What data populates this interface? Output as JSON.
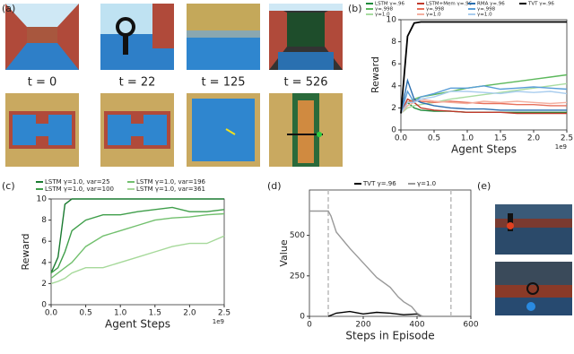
{
  "panel_labels": [
    "(a)",
    "(b)",
    "(c)",
    "(d)",
    "(e)"
  ],
  "frames": [
    "t = 0",
    "t = 22",
    "t = 125",
    "t = 526"
  ],
  "chart_data": [
    {
      "type": "line",
      "xlabel": "Agent Steps",
      "ylabel": "Reward",
      "offset_label": "1e9",
      "x": [
        0,
        0.1,
        0.2,
        0.3,
        0.5,
        0.75,
        1.0,
        1.25,
        1.5,
        1.75,
        2.0,
        2.25,
        2.5
      ],
      "xlim": [
        0,
        2.5
      ],
      "ylim": [
        0,
        10
      ],
      "xticks": [
        {
          "value": 0,
          "label": "0.0"
        },
        0.5,
        {
          "value": 1,
          "label": "1.0"
        },
        1.5,
        {
          "value": 2,
          "label": "2.0"
        },
        2.5
      ],
      "yticks": [
        0,
        2,
        4,
        6,
        8,
        10
      ],
      "series": [
        {
          "name": "LSTM γ=.96",
          "color": "#1e8a3a",
          "values": [
            1.5,
            2.5,
            2.0,
            1.8,
            1.7,
            1.7,
            1.6,
            1.6,
            1.6,
            1.6,
            1.6,
            1.6,
            1.6
          ]
        },
        {
          "name": "γ=.998",
          "color": "#5cb85c",
          "values": [
            1.5,
            2.5,
            2.8,
            3.0,
            3.2,
            3.5,
            3.8,
            4.0,
            4.2,
            4.4,
            4.6,
            4.8,
            5.0
          ]
        },
        {
          "name": "γ=1.0",
          "color": "#a8dca0",
          "values": [
            1.5,
            2.0,
            2.2,
            2.3,
            2.5,
            2.8,
            3.0,
            3.2,
            3.4,
            3.6,
            3.8,
            4.0,
            4.2
          ]
        },
        {
          "name": "LSTM+Mem γ=.96",
          "color": "#c0392b",
          "values": [
            1.5,
            2.8,
            2.5,
            2.0,
            1.8,
            1.7,
            1.6,
            1.6,
            1.6,
            1.5,
            1.5,
            1.5,
            1.5
          ]
        },
        {
          "name": "γ=.998",
          "color": "#e8705a",
          "values": [
            1.5,
            2.5,
            2.7,
            2.6,
            2.5,
            2.6,
            2.5,
            2.4,
            2.4,
            2.3,
            2.3,
            2.2,
            2.2
          ]
        },
        {
          "name": "γ=1.0",
          "color": "#f4b0a0",
          "values": [
            1.5,
            2.2,
            2.5,
            2.8,
            2.6,
            2.5,
            2.4,
            2.6,
            2.5,
            2.6,
            2.5,
            2.4,
            2.5
          ]
        },
        {
          "name": "RMA γ=.96",
          "color": "#2a6fb0",
          "values": [
            1.5,
            4.5,
            2.8,
            2.5,
            2.2,
            2.0,
            1.9,
            1.9,
            1.8,
            1.8,
            1.8,
            1.8,
            1.8
          ]
        },
        {
          "name": "γ=.998",
          "color": "#5a9ed8",
          "values": [
            1.5,
            3.5,
            2.5,
            3.0,
            3.3,
            3.8,
            3.8,
            4.0,
            3.7,
            3.8,
            3.9,
            3.8,
            3.7
          ]
        },
        {
          "name": "γ=1.0",
          "color": "#a9cdee",
          "values": [
            1.5,
            2.5,
            2.5,
            2.8,
            3.0,
            3.5,
            3.5,
            3.4,
            3.3,
            3.5,
            3.4,
            3.5,
            3.3
          ]
        },
        {
          "name": "TVT γ=.96",
          "color": "#000000",
          "values": [
            1.5,
            8.5,
            9.7,
            9.8,
            9.8,
            9.8,
            9.8,
            9.8,
            9.8,
            9.8,
            9.8,
            9.8,
            9.8
          ]
        }
      ]
    },
    {
      "type": "line",
      "xlabel": "Agent Steps",
      "ylabel": "Reward",
      "offset_label": "1e9",
      "x": [
        0,
        0.1,
        0.2,
        0.3,
        0.5,
        0.75,
        1.0,
        1.25,
        1.5,
        1.75,
        2.0,
        2.25,
        2.5
      ],
      "xlim": [
        0,
        2.5
      ],
      "ylim": [
        0,
        10
      ],
      "xticks": [
        {
          "value": 0,
          "label": "0.0"
        },
        0.5,
        {
          "value": 1,
          "label": "1.0"
        },
        1.5,
        {
          "value": 2,
          "label": "2.0"
        },
        2.5
      ],
      "yticks": [
        0,
        2,
        4,
        6,
        8,
        10
      ],
      "series": [
        {
          "name": "LSTM γ=1.0, var=25",
          "color": "#1a7a30",
          "values": [
            3.0,
            4.5,
            9.5,
            10,
            10,
            10,
            10,
            10,
            10,
            10,
            10,
            10,
            10
          ]
        },
        {
          "name": "LSTM γ=1.0, var=100",
          "color": "#3f9e4a",
          "values": [
            3.0,
            3.5,
            5.0,
            7.0,
            8.0,
            8.5,
            8.5,
            8.8,
            9.0,
            9.2,
            8.8,
            8.8,
            9.0
          ]
        },
        {
          "name": "LSTM γ=1.0, var=196",
          "color": "#72c06e",
          "values": [
            2.5,
            3.0,
            3.5,
            4.0,
            5.5,
            6.5,
            7.0,
            7.5,
            8.0,
            8.2,
            8.3,
            8.5,
            8.6
          ]
        },
        {
          "name": "LSTM γ=1.0, var=361",
          "color": "#a6d99a",
          "values": [
            2.0,
            2.2,
            2.5,
            3.0,
            3.5,
            3.5,
            4.0,
            4.5,
            5.0,
            5.5,
            5.8,
            5.8,
            6.5
          ]
        }
      ]
    },
    {
      "type": "line",
      "xlabel": "Steps in Episode",
      "ylabel": "Value",
      "xlim": [
        0,
        600
      ],
      "ylim": [
        0,
        780
      ],
      "xticks": [
        0,
        200,
        400,
        600
      ],
      "yticks": [
        0,
        250,
        500
      ],
      "vlines": [
        70,
        526
      ],
      "series": [
        {
          "name": "TVT γ=.96",
          "color": "#000000",
          "x": [
            70,
            100,
            150,
            200,
            250,
            300,
            350,
            400,
            420
          ],
          "values": [
            0,
            20,
            30,
            15,
            25,
            20,
            10,
            15,
            0
          ]
        },
        {
          "name": "γ=1.0",
          "color": "#999999",
          "x": [
            0,
            70,
            80,
            100,
            150,
            200,
            250,
            300,
            330,
            350,
            380,
            400,
            420
          ],
          "values": [
            650,
            650,
            620,
            520,
            420,
            330,
            240,
            180,
            120,
            90,
            60,
            20,
            0
          ]
        }
      ]
    }
  ]
}
